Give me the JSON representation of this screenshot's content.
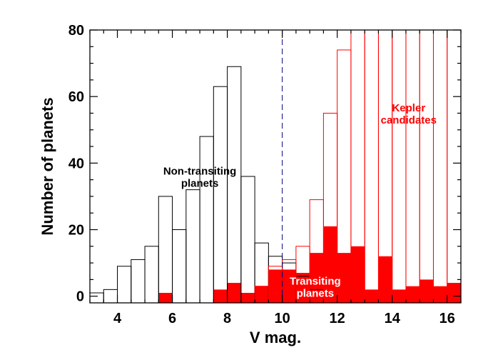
{
  "chart_data": {
    "type": "histogram",
    "xlabel": "V mag.",
    "ylabel": "Number of planets",
    "xlim": [
      3.0,
      16.5
    ],
    "ylim": [
      -2,
      80
    ],
    "bin_width": 0.5,
    "x_ticks": [
      4,
      6,
      8,
      10,
      12,
      14,
      16
    ],
    "y_ticks": [
      0,
      20,
      40,
      60,
      80
    ],
    "vertical_line": {
      "x": 10,
      "style": "dashed",
      "color": "#000080"
    },
    "colors": {
      "non_transiting": "#000000",
      "kepler": "#ff0000",
      "transiting_fill": "#ff0000"
    },
    "series": [
      {
        "name": "Non-transiting planets",
        "style": "outline",
        "bin_starts": [
          3.0,
          3.5,
          4.0,
          4.5,
          5.0,
          5.5,
          6.0,
          6.5,
          7.0,
          7.5,
          8.0,
          8.5,
          9.0,
          9.5,
          10.0,
          10.5,
          11.0
        ],
        "values": [
          1,
          2,
          9,
          11,
          15,
          30,
          20,
          32,
          48,
          63,
          69,
          36,
          16,
          12,
          10,
          6,
          2
        ]
      },
      {
        "name": "Kepler candidates",
        "style": "outline",
        "bin_starts": [
          9.0,
          9.5,
          10.0,
          10.5,
          11.0,
          11.5,
          12.0,
          12.5,
          13.0,
          13.5,
          14.0,
          14.5,
          15.0,
          15.5,
          16.0
        ],
        "values": [
          3,
          9,
          11,
          15,
          29,
          55,
          74,
          80,
          80,
          80,
          80,
          80,
          80,
          80,
          80
        ]
      },
      {
        "name": "Transiting planets",
        "style": "filled",
        "bin_starts": [
          5.5,
          6.0,
          6.5,
          7.0,
          7.5,
          8.0,
          8.5,
          9.0,
          9.5,
          10.0,
          10.5,
          11.0,
          11.5,
          12.0,
          12.5,
          13.0,
          13.5,
          14.0,
          14.5,
          15.0,
          15.5,
          16.0
        ],
        "values": [
          1,
          0,
          0,
          0,
          2,
          4,
          1,
          3,
          8,
          8,
          7,
          13,
          21,
          13,
          15,
          2,
          12,
          2,
          3,
          5,
          3,
          4
        ]
      }
    ],
    "annotations": [
      {
        "lines": [
          "Non-transiting",
          "planets"
        ],
        "x": 7.0,
        "y": 36.5,
        "color": "#000000"
      },
      {
        "lines": [
          "Kepler",
          "candidates"
        ],
        "x": 14.6,
        "y": 55.5,
        "color": "#ff0000"
      },
      {
        "lines": [
          "Transiting",
          "planets"
        ],
        "x": 11.2,
        "y": 3.5,
        "color": "#ffffff"
      }
    ]
  }
}
